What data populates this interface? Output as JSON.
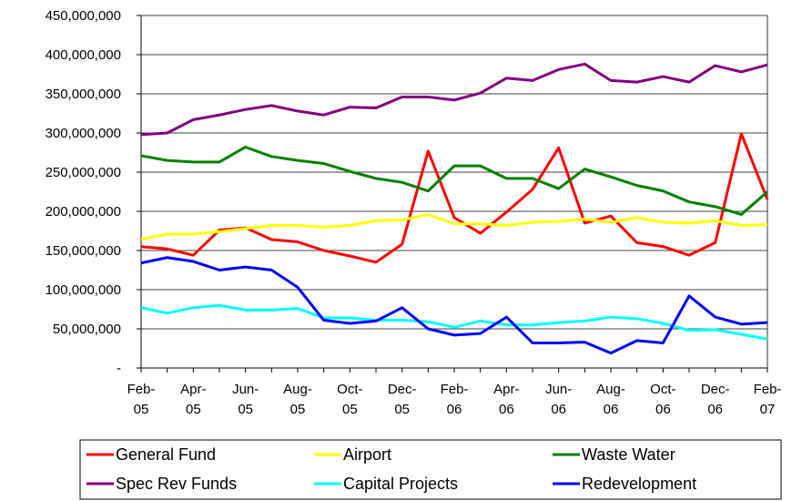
{
  "chart_data": {
    "type": "line",
    "categories": [
      "Feb-05",
      null,
      "Apr-05",
      null,
      "Jun-05",
      null,
      "Aug-05",
      null,
      "Oct-05",
      null,
      "Dec-05",
      null,
      "Feb-06",
      null,
      "Apr-06",
      null,
      "Jun-06",
      null,
      "Aug-06",
      null,
      "Oct-06",
      null,
      "Dec-06",
      null,
      "Feb-07"
    ],
    "ylim": [
      0,
      450000000
    ],
    "yticks": [
      {
        "value": 0,
        "label": "-"
      },
      {
        "value": 50000000,
        "label": "50,000,000"
      },
      {
        "value": 100000000,
        "label": "100,000,000"
      },
      {
        "value": 150000000,
        "label": "150,000,000"
      },
      {
        "value": 200000000,
        "label": "200,000,000"
      },
      {
        "value": 250000000,
        "label": "250,000,000"
      },
      {
        "value": 300000000,
        "label": "300,000,000"
      },
      {
        "value": 350000000,
        "label": "350,000,000"
      },
      {
        "value": 400000000,
        "label": "400,000,000"
      },
      {
        "value": 450000000,
        "label": "450,000,000"
      }
    ],
    "grid": true,
    "legend": "bottom",
    "series": [
      {
        "name": "General Fund",
        "color": "#ff0000",
        "values": [
          155000000,
          152000000,
          144000000,
          176000000,
          179000000,
          164000000,
          161000000,
          150000000,
          143000000,
          135000000,
          158000000,
          277000000,
          192000000,
          172000000,
          199000000,
          228000000,
          281000000,
          185000000,
          194000000,
          160000000,
          155000000,
          144000000,
          160000000,
          299000000,
          215000000
        ]
      },
      {
        "name": "Airport",
        "color": "#ffff00",
        "values": [
          164000000,
          171000000,
          171000000,
          174000000,
          178000000,
          182000000,
          182000000,
          180000000,
          182000000,
          188000000,
          189000000,
          196000000,
          184000000,
          184000000,
          182000000,
          186000000,
          187000000,
          190000000,
          186000000,
          192000000,
          186000000,
          185000000,
          188000000,
          182000000,
          183000000
        ]
      },
      {
        "name": "Waste Water",
        "color": "#008000",
        "values": [
          271000000,
          265000000,
          263000000,
          263000000,
          282000000,
          270000000,
          265000000,
          261000000,
          251000000,
          242000000,
          237000000,
          226000000,
          258000000,
          258000000,
          242000000,
          242000000,
          229000000,
          254000000,
          244000000,
          233000000,
          226000000,
          212000000,
          206000000,
          196000000,
          225000000
        ]
      },
      {
        "name": "Spec Rev Funds",
        "color": "#800080",
        "values": [
          298000000,
          300000000,
          317000000,
          323000000,
          330000000,
          335000000,
          328000000,
          323000000,
          333000000,
          332000000,
          346000000,
          346000000,
          342000000,
          351000000,
          370000000,
          367000000,
          381000000,
          388000000,
          367000000,
          365000000,
          372000000,
          365000000,
          386000000,
          378000000,
          387000000
        ]
      },
      {
        "name": "Capital Projects",
        "color": "#00ffff",
        "values": [
          77000000,
          70000000,
          77000000,
          80000000,
          74000000,
          74000000,
          76000000,
          64000000,
          64000000,
          61000000,
          61000000,
          59000000,
          52000000,
          60000000,
          55000000,
          55000000,
          58000000,
          60000000,
          65000000,
          63000000,
          57000000,
          48000000,
          49000000,
          43000000,
          37000000
        ]
      },
      {
        "name": "Redevelopment",
        "color": "#0000ff",
        "values": [
          134000000,
          141000000,
          136000000,
          125000000,
          129000000,
          125000000,
          103000000,
          61000000,
          57000000,
          60000000,
          77000000,
          50000000,
          42000000,
          44000000,
          65000000,
          32000000,
          32000000,
          33000000,
          19000000,
          35000000,
          32000000,
          92000000,
          65000000,
          56000000,
          58000000
        ]
      }
    ]
  }
}
